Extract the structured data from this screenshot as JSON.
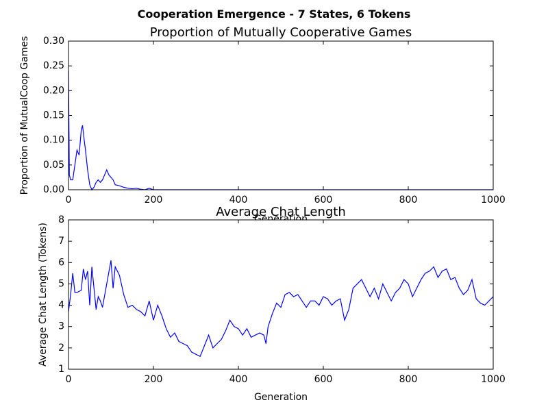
{
  "figure_title": "Cooperation Emergence - 7 States, 6 Tokens",
  "chart_data": [
    {
      "type": "line",
      "title": "Proportion of Mutually Cooperative Games",
      "x_label": "Generation",
      "y_label": "Proportion of MutualCoop Games",
      "x": [
        0,
        2,
        5,
        10,
        15,
        20,
        25,
        30,
        33,
        37,
        40,
        45,
        50,
        55,
        60,
        65,
        70,
        75,
        80,
        85,
        90,
        95,
        100,
        105,
        110,
        120,
        130,
        140,
        150,
        160,
        170,
        180,
        190,
        200,
        300,
        400,
        500,
        600,
        700,
        800,
        900,
        1000
      ],
      "series": [
        {
          "color": "#0000ff",
          "values": [
            0.24,
            0.03,
            0.02,
            0.02,
            0.05,
            0.08,
            0.07,
            0.12,
            0.13,
            0.1,
            0.08,
            0.04,
            0.01,
            0.0,
            0.005,
            0.015,
            0.02,
            0.015,
            0.02,
            0.03,
            0.04,
            0.03,
            0.025,
            0.02,
            0.01,
            0.008,
            0.005,
            0.003,
            0.002,
            0.003,
            0.001,
            0,
            0.003,
            0,
            0,
            0,
            0,
            0,
            0,
            0,
            0,
            0
          ]
        }
      ],
      "xlim": [
        0,
        1000
      ],
      "xticks": [
        0,
        200,
        400,
        600,
        800,
        1000
      ],
      "ylim": [
        0,
        0.3
      ],
      "yticks": [
        {
          "value": 0,
          "label": "0.00"
        },
        {
          "value": 0.05,
          "label": "0.05"
        },
        {
          "value": 0.1,
          "label": "0.10"
        },
        {
          "value": 0.15,
          "label": "0.15"
        },
        {
          "value": 0.2,
          "label": "0.20"
        },
        {
          "value": 0.25,
          "label": "0.25"
        },
        {
          "value": 0.3,
          "label": "0.30"
        }
      ]
    },
    {
      "type": "line",
      "title": "Average Chat Length",
      "x_label": "Generation",
      "y_label": "Average Chat Length (Tokens)",
      "x": [
        0,
        5,
        10,
        15,
        20,
        30,
        35,
        40,
        45,
        50,
        55,
        60,
        65,
        70,
        75,
        80,
        90,
        100,
        105,
        110,
        120,
        130,
        140,
        150,
        160,
        170,
        180,
        190,
        200,
        210,
        220,
        230,
        240,
        250,
        260,
        270,
        280,
        290,
        300,
        310,
        320,
        330,
        340,
        350,
        360,
        370,
        380,
        390,
        400,
        410,
        420,
        430,
        440,
        450,
        460,
        465,
        470,
        480,
        490,
        500,
        510,
        520,
        530,
        540,
        550,
        560,
        570,
        580,
        590,
        600,
        610,
        620,
        630,
        640,
        650,
        660,
        670,
        680,
        690,
        700,
        710,
        720,
        730,
        740,
        750,
        760,
        770,
        780,
        790,
        800,
        810,
        820,
        830,
        840,
        850,
        860,
        870,
        880,
        890,
        900,
        910,
        920,
        930,
        940,
        950,
        960,
        970,
        980,
        990,
        1000
      ],
      "series": [
        {
          "color": "#0000ff",
          "values": [
            3.7,
            4.5,
            5.5,
            4.6,
            4.6,
            4.7,
            5.7,
            5.2,
            5.6,
            4.0,
            5.8,
            4.8,
            3.8,
            4.4,
            4.2,
            3.9,
            5.0,
            6.1,
            4.8,
            5.8,
            5.4,
            4.5,
            3.9,
            4.0,
            3.8,
            3.7,
            3.5,
            4.2,
            3.3,
            4.0,
            3.5,
            2.9,
            2.5,
            2.7,
            2.3,
            2.2,
            2.1,
            1.8,
            1.7,
            1.6,
            2.1,
            2.6,
            2.0,
            2.2,
            2.4,
            2.8,
            3.3,
            3.0,
            2.9,
            2.6,
            2.9,
            2.5,
            2.6,
            2.7,
            2.6,
            2.2,
            3.0,
            3.6,
            4.1,
            3.9,
            4.5,
            4.6,
            4.4,
            4.5,
            4.2,
            3.9,
            4.2,
            4.2,
            4.0,
            4.4,
            4.3,
            4.0,
            4.2,
            4.3,
            3.3,
            3.8,
            4.8,
            5.0,
            5.2,
            4.8,
            4.4,
            4.8,
            4.3,
            5.0,
            4.6,
            4.2,
            4.6,
            4.8,
            5.2,
            5.0,
            4.4,
            4.8,
            5.2,
            5.5,
            5.6,
            5.8,
            5.3,
            5.6,
            5.7,
            5.2,
            5.3,
            4.8,
            4.5,
            4.7,
            5.2,
            4.3,
            4.1,
            4.0,
            4.2,
            4.4
          ]
        }
      ],
      "xlim": [
        0,
        1000
      ],
      "xticks": [
        0,
        200,
        400,
        600,
        800,
        1000
      ],
      "ylim": [
        1,
        8
      ],
      "yticks": [
        1,
        2,
        3,
        4,
        5,
        6,
        7,
        8
      ]
    }
  ]
}
